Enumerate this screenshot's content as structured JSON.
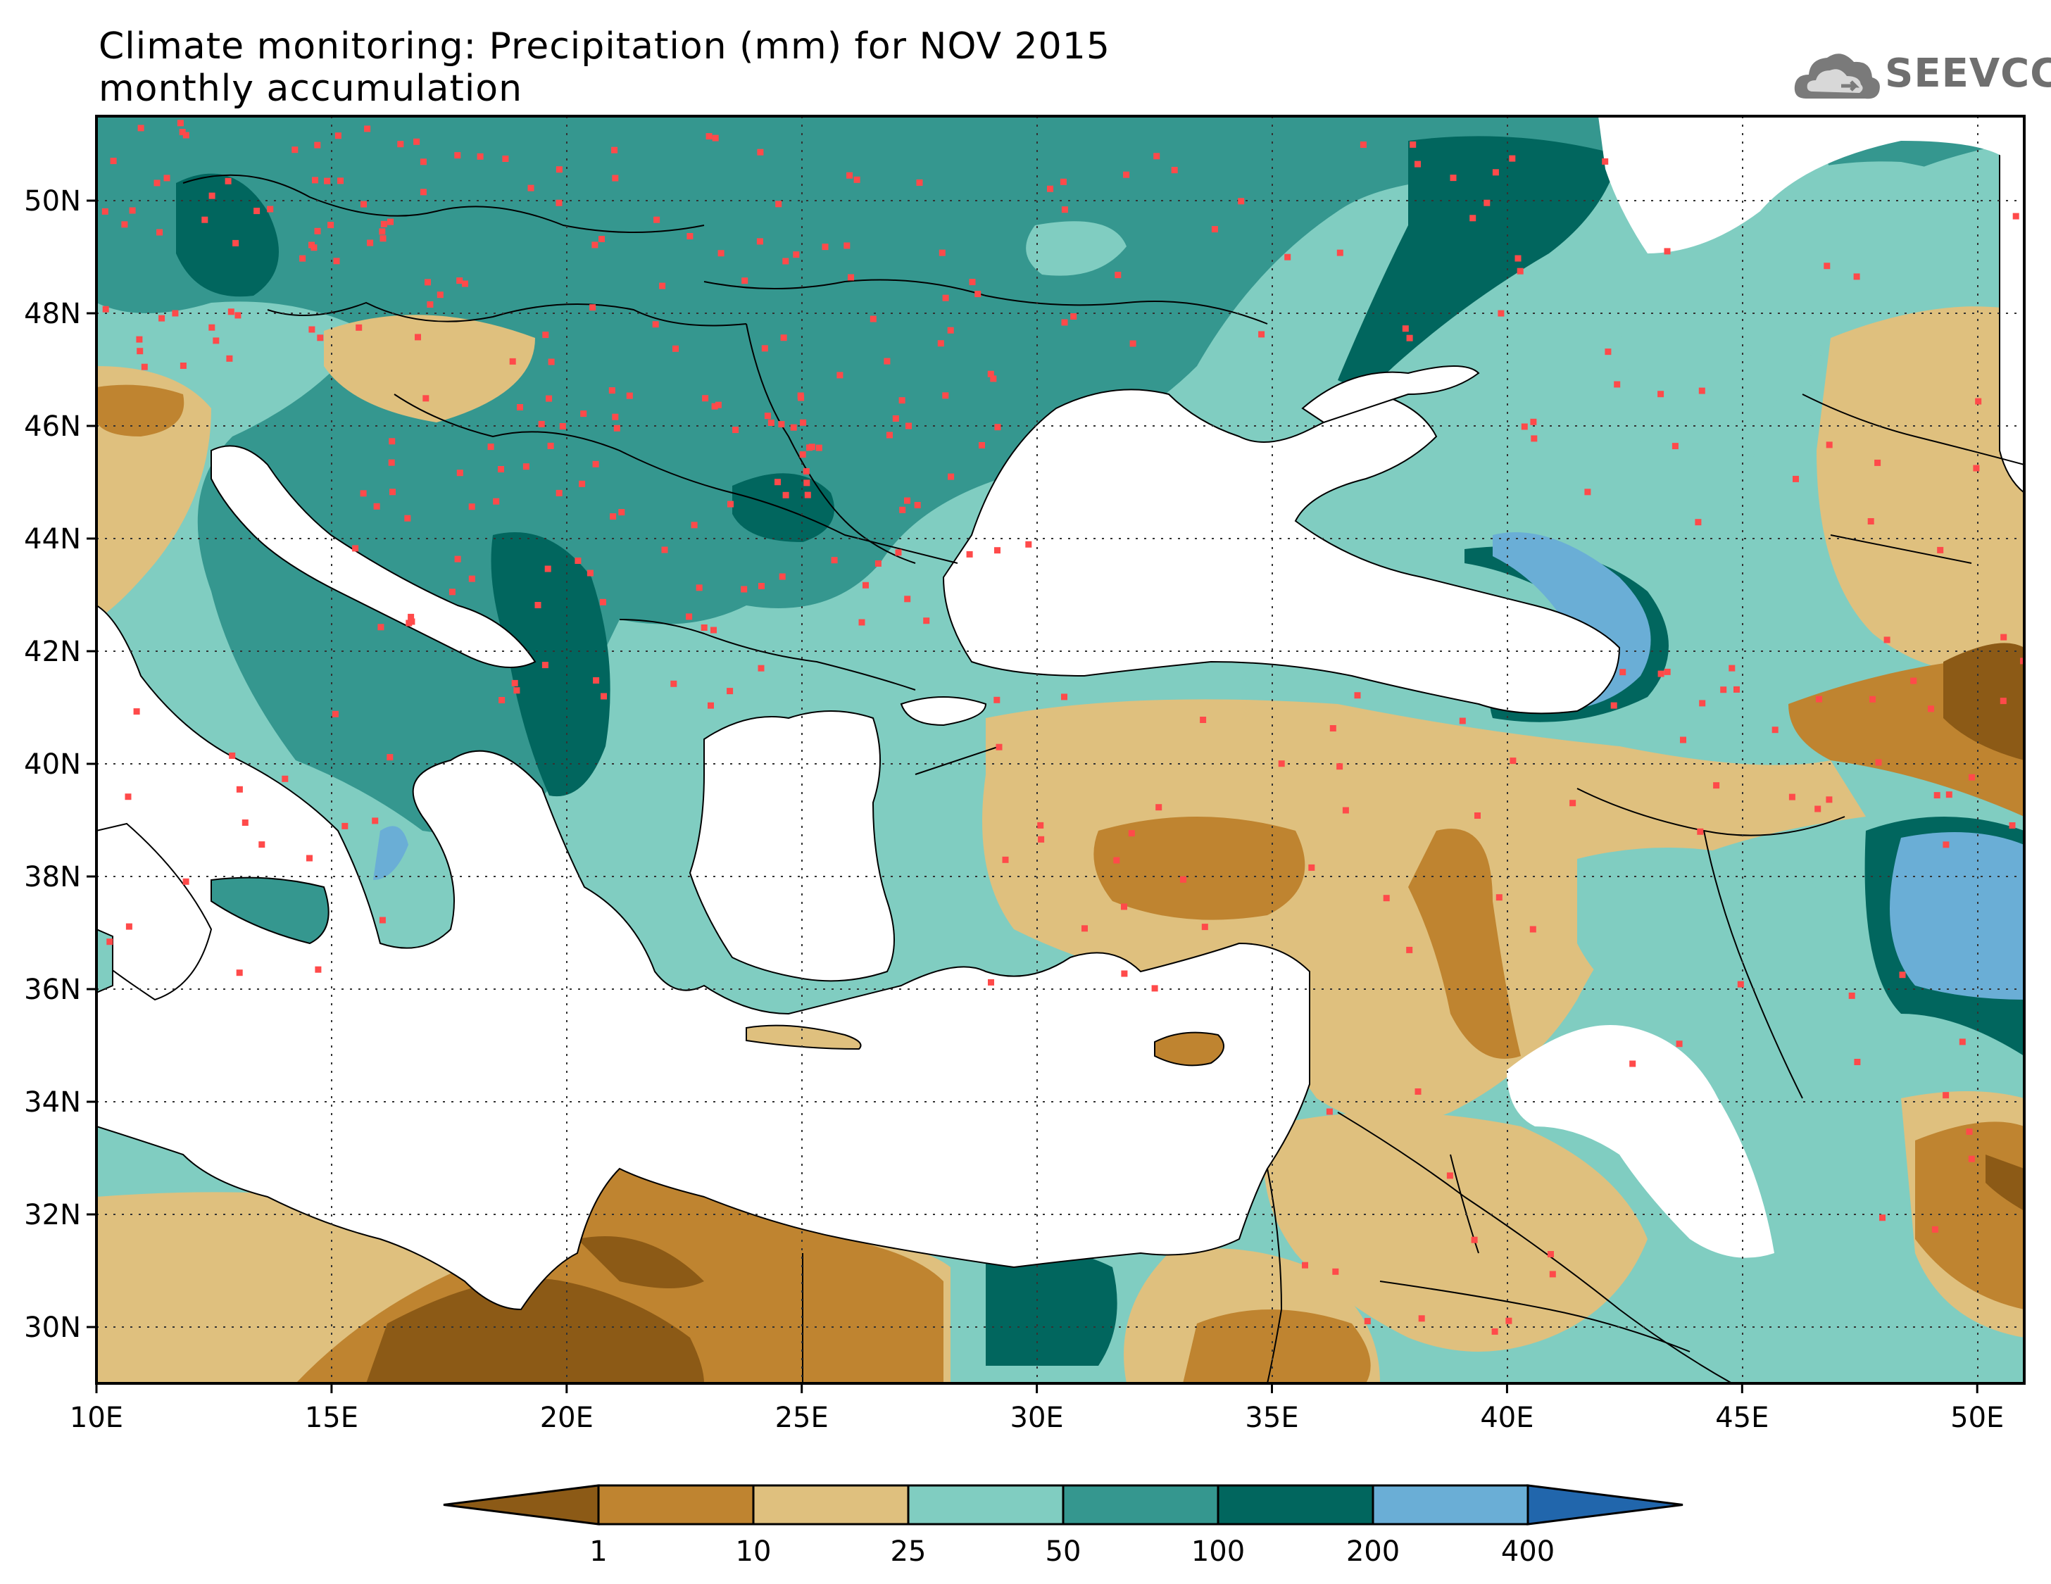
{
  "title": {
    "line1": "Climate monitoring: Precipitation (mm) for NOV 2015",
    "line2": "monthly accumulation"
  },
  "logo": {
    "text": "SEEVCCC",
    "icon": "cloud-icon"
  },
  "map": {
    "lon_range": [
      10,
      51
    ],
    "lat_range": [
      29,
      51.5
    ],
    "x_ticks": [
      "10E",
      "15E",
      "20E",
      "25E",
      "30E",
      "35E",
      "40E",
      "45E",
      "50E"
    ],
    "y_ticks": [
      "30N",
      "32N",
      "34N",
      "36N",
      "38N",
      "40N",
      "42N",
      "44N",
      "46N",
      "48N",
      "50N"
    ],
    "grid": "dotted",
    "station_color": "#ff4a4a"
  },
  "colorbar": {
    "labels": [
      "1",
      "10",
      "25",
      "50",
      "100",
      "200",
      "400"
    ],
    "colors": [
      "#8c5a16",
      "#bf8430",
      "#dfc07e",
      "#80cdc1",
      "#35978f",
      "#01665e",
      "#6aaed6",
      "#2166ac"
    ]
  }
}
